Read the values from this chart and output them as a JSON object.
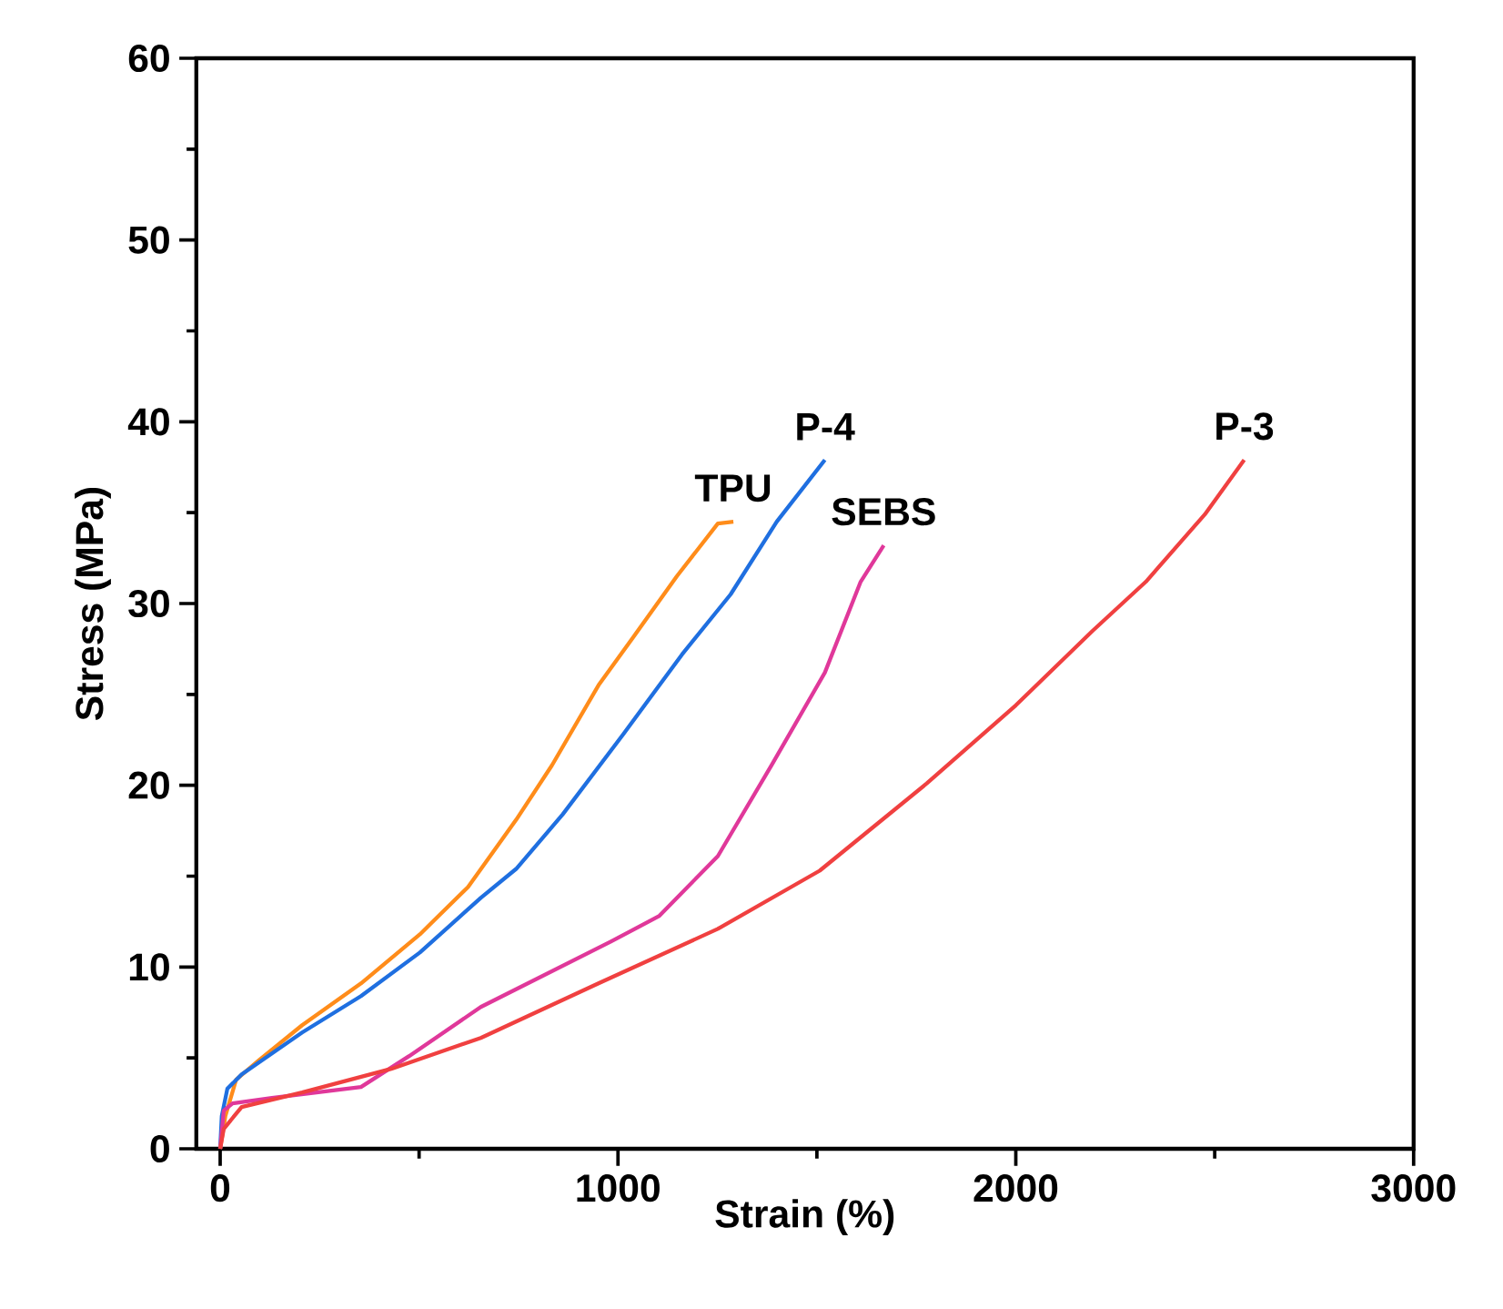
{
  "chart_data": {
    "type": "line",
    "xlabel": "Strain (%)",
    "ylabel": "Stress (MPa)",
    "xlim": [
      -60,
      3000
    ],
    "ylim": [
      0,
      60
    ],
    "xticks": [
      0,
      1000,
      2000,
      3000
    ],
    "yticks": [
      0,
      10,
      20,
      30,
      40,
      50,
      60
    ],
    "grid": false,
    "legend": false,
    "marker": "none",
    "line_style": "solid",
    "series": [
      {
        "name": "TPU",
        "color": "#ff8c1a",
        "x": [
          0,
          13,
          40,
          99,
          206,
          354,
          502,
          623,
          744,
          834,
          951,
          1040,
          1148,
          1251,
          1290
        ],
        "values": [
          0,
          1.8,
          3.8,
          4.9,
          6.8,
          9.1,
          11.8,
          14.4,
          18.1,
          21.1,
          25.5,
          28.2,
          31.5,
          34.4,
          34.5
        ]
      },
      {
        "name": "P-4",
        "color": "#1f6fe0",
        "x": [
          0,
          4,
          18,
          54,
          206,
          354,
          502,
          655,
          744,
          861,
          1013,
          1161,
          1283,
          1399,
          1520
        ],
        "values": [
          0,
          1.8,
          3.3,
          4.1,
          6.4,
          8.4,
          10.8,
          13.8,
          15.4,
          18.4,
          22.8,
          27.2,
          30.5,
          34.5,
          37.9
        ]
      },
      {
        "name": "SEBS",
        "color": "#e0389a",
        "x": [
          0,
          9,
          31,
          130,
          354,
          475,
          655,
          982,
          1103,
          1251,
          1386,
          1520,
          1610,
          1668
        ],
        "values": [
          0,
          2.1,
          2.5,
          2.8,
          3.4,
          5.1,
          7.8,
          11.4,
          12.8,
          16.1,
          21.1,
          26.2,
          31.2,
          33.2
        ]
      },
      {
        "name": "P-3",
        "color": "#f04040",
        "x": [
          0,
          9,
          54,
          206,
          430,
          655,
          951,
          1251,
          1507,
          1776,
          2000,
          2193,
          2327,
          2475,
          2574
        ],
        "values": [
          0,
          1.1,
          2.3,
          3.1,
          4.4,
          6.1,
          9.1,
          12.1,
          15.3,
          20.1,
          24.4,
          28.5,
          31.2,
          34.9,
          37.9
        ]
      }
    ]
  }
}
